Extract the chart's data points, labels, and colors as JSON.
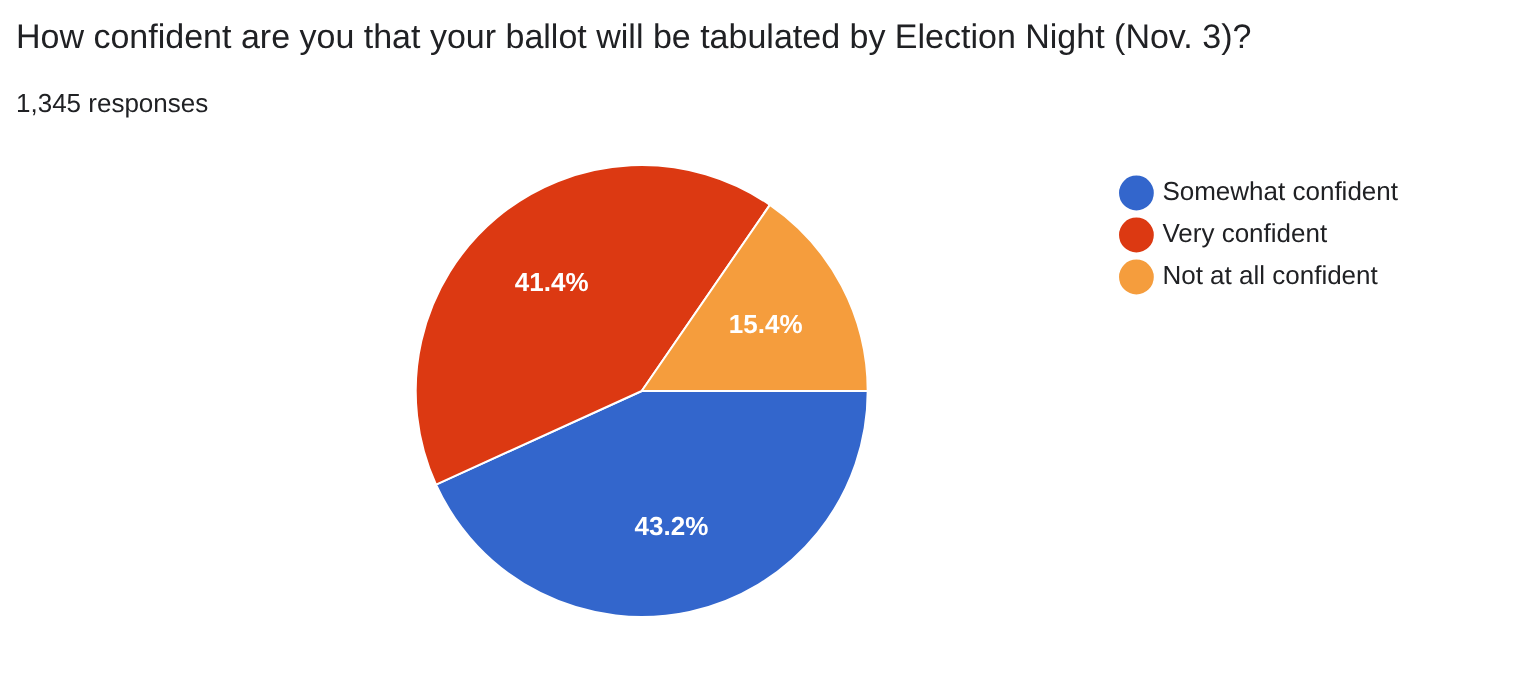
{
  "chart_data": {
    "type": "pie",
    "title": "How confident are you that your ballot will be tabulated by Election Night (Nov. 3)?",
    "subtitle": "1,345 responses",
    "categories": [
      "Somewhat confident",
      "Very confident",
      "Not at all confident"
    ],
    "values": [
      43.2,
      41.4,
      15.4
    ],
    "colors": [
      "#3366cc",
      "#dc3912",
      "#f59d3d"
    ],
    "value_labels": [
      "43.2%",
      "41.4%",
      "15.4%"
    ],
    "legend": "right"
  }
}
